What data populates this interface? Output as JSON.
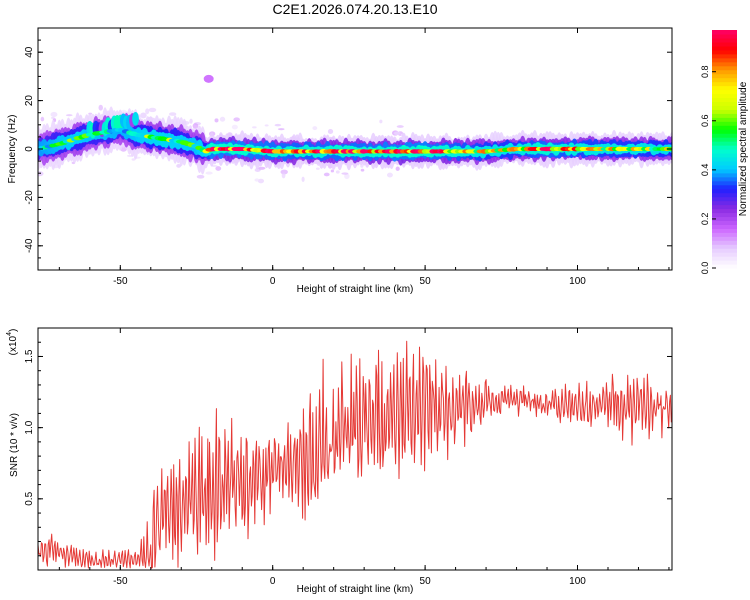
{
  "title": "C2E1.2026.074.20.13.E10",
  "chart_data": [
    {
      "type": "heatmap",
      "xlabel": "Height of straight line (km)",
      "ylabel": "Frequency (Hz)",
      "xlim": [
        -77,
        131
      ],
      "ylim": [
        -50,
        50
      ],
      "x_ticks": [
        -50,
        0,
        50,
        100
      ],
      "y_ticks": [
        -40,
        -20,
        0,
        20,
        40
      ],
      "colorbar": {
        "label": "Normalized spectral amplitude",
        "range": [
          0.0,
          0.97
        ],
        "ticks": [
          0.0,
          0.2,
          0.4,
          0.6,
          0.8
        ],
        "colormap": [
          "#ffffff",
          "#e6ccff",
          "#cc66ff",
          "#8a2be2",
          "#2020ff",
          "#00ccff",
          "#00ffcc",
          "#00ff00",
          "#ccff00",
          "#ffff00",
          "#ff9900",
          "#ff0000",
          "#ff0066"
        ]
      },
      "ridge": {
        "x": [
          -77,
          -70,
          -65,
          -60,
          -55,
          -50,
          -45,
          -40,
          -35,
          -30,
          -25,
          -22,
          -20,
          -10,
          0,
          10,
          20,
          30,
          40,
          50,
          60,
          70,
          80,
          90,
          100,
          110,
          120,
          131
        ],
        "freq": [
          0,
          2,
          4,
          6,
          7,
          8,
          6,
          5,
          4,
          3,
          1,
          -1,
          0,
          0,
          -1,
          -1,
          -1,
          -1,
          -1,
          -1,
          -1,
          -1,
          0,
          0,
          0,
          0,
          0,
          0
        ],
        "amplitude": [
          0.4,
          0.5,
          0.55,
          0.5,
          0.5,
          0.45,
          0.5,
          0.6,
          0.6,
          0.55,
          0.5,
          0.6,
          0.9,
          0.9,
          0.85,
          0.8,
          0.85,
          0.85,
          0.9,
          0.9,
          0.8,
          0.7,
          0.7,
          0.85,
          0.75,
          0.7,
          0.7,
          0.65
        ]
      },
      "secondary_band": {
        "x": [
          -60,
          -55,
          -50,
          -45
        ],
        "freq": [
          8,
          9,
          11,
          12
        ],
        "amplitude": [
          0.45,
          0.5,
          0.55,
          0.45
        ]
      },
      "isolated_blobs": [
        {
          "x": -21,
          "freq": 29,
          "amplitude": 0.15
        }
      ]
    },
    {
      "type": "line",
      "xlabel": "Height of straight line (km)",
      "ylabel": "SNR (10 * v/v)",
      "y_scale_label": "(x10",
      "y_scale_exponent": "4",
      "xlim": [
        -77,
        131
      ],
      "ylim": [
        0,
        1.7
      ],
      "x_ticks": [
        -50,
        0,
        50,
        100
      ],
      "y_ticks": [
        0.5,
        1.0,
        1.5
      ],
      "color": "#e53935",
      "envelope": {
        "x": [
          -77,
          -70,
          -60,
          -50,
          -45,
          -40,
          -38,
          -35,
          -30,
          -25,
          -20,
          -15,
          -10,
          -5,
          0,
          5,
          10,
          15,
          20,
          25,
          30,
          35,
          40,
          45,
          50,
          55,
          60,
          65,
          70,
          80,
          90,
          100,
          110,
          120,
          125,
          131
        ],
        "y": [
          0.15,
          0.12,
          0.06,
          0.07,
          0.08,
          0.1,
          0.3,
          0.35,
          0.45,
          0.55,
          0.6,
          0.6,
          0.6,
          0.65,
          0.7,
          0.7,
          0.75,
          0.85,
          0.9,
          1.0,
          1.05,
          1.1,
          1.1,
          1.1,
          1.15,
          1.15,
          1.15,
          1.15,
          1.2,
          1.2,
          1.15,
          1.15,
          1.15,
          1.15,
          1.15,
          1.15
        ]
      },
      "amplitude": {
        "x": [
          -77,
          -60,
          -45,
          -40,
          -35,
          -25,
          -15,
          -5,
          5,
          15,
          25,
          35,
          45,
          55,
          65,
          75,
          90,
          105,
          120,
          131
        ],
        "y": [
          0.12,
          0.06,
          0.06,
          0.3,
          0.35,
          0.45,
          0.35,
          0.3,
          0.3,
          0.45,
          0.4,
          0.45,
          0.4,
          0.3,
          0.2,
          0.1,
          0.1,
          0.15,
          0.2,
          0.15
        ]
      }
    }
  ]
}
